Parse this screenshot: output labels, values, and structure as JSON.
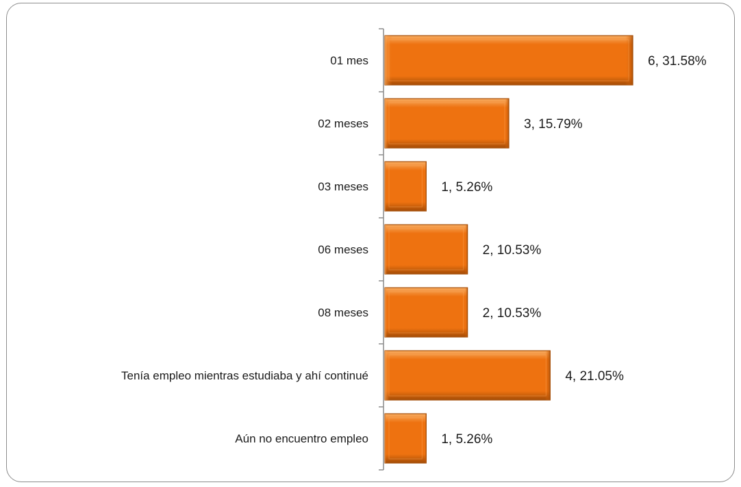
{
  "colors": {
    "bar": "#ee7210",
    "bar_light": "#f8ad62",
    "bar_dark": "#a44c06",
    "axis": "#8c8c8c",
    "text": "#1a1a1a"
  },
  "chart_data": {
    "type": "bar",
    "orientation": "horizontal",
    "title": "",
    "xlabel": "",
    "ylabel": "",
    "categories": [
      "01 mes",
      "02 meses",
      "03 meses",
      "06 meses",
      "08 meses",
      "Tenía empleo mientras estudiaba y ahí continué",
      "Aún no encuentro empleo"
    ],
    "values": [
      6,
      3,
      1,
      2,
      2,
      4,
      1
    ],
    "percentages": [
      31.58,
      15.79,
      5.26,
      10.53,
      10.53,
      21.05,
      5.26
    ],
    "data_labels": [
      "6, 31.58%",
      "3, 15.79%",
      "1, 5.26%",
      "2, 10.53%",
      "2, 10.53%",
      "4, 21.05%",
      "1, 5.26%"
    ],
    "xlim": [
      0,
      6
    ],
    "grid": false,
    "legend": "none"
  }
}
